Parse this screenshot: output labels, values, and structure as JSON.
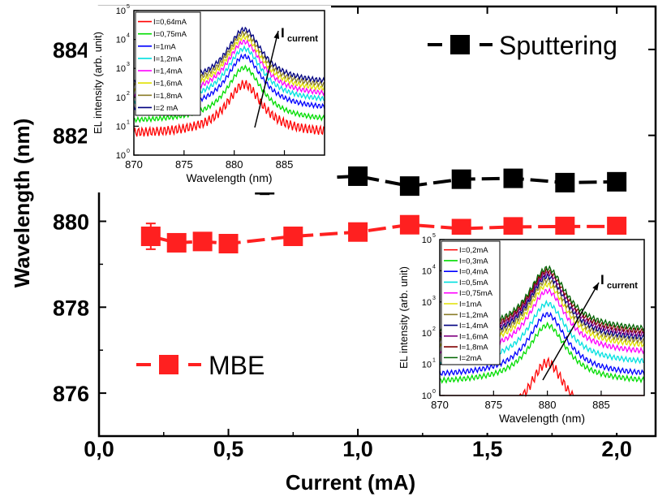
{
  "chart_data": [
    {
      "type": "scatter",
      "xlabel": "Current (mA)",
      "ylabel": "Wavelength (nm)",
      "xlim": [
        0.0,
        2.15
      ],
      "ylim": [
        875.0,
        885.0
      ],
      "xticks": [
        "0,0",
        "0,5",
        "1,0",
        "1,5",
        "2,0"
      ],
      "xtick_values": [
        0.0,
        0.5,
        1.0,
        1.5,
        2.0
      ],
      "yticks": [
        "876",
        "878",
        "880",
        "882",
        "884"
      ],
      "ytick_values": [
        876,
        878,
        880,
        882,
        884
      ],
      "legend": "series labels inside plot area",
      "series": [
        {
          "name": "Sputtering",
          "color": "#000000",
          "marker": "square",
          "x": [
            0.64,
            0.75,
            1.0,
            1.2,
            1.4,
            1.6,
            1.8,
            2.0
          ],
          "y": [
            880.85,
            880.98,
            881.05,
            880.82,
            880.98,
            881.0,
            880.9,
            880.92
          ],
          "yerr": [
            0.22,
            0.1,
            0.12,
            0.12,
            0.1,
            0.1,
            0.08,
            0.08
          ]
        },
        {
          "name": "MBE",
          "color": "#ff2020",
          "marker": "square",
          "x": [
            0.2,
            0.3,
            0.4,
            0.5,
            0.75,
            1.0,
            1.2,
            1.4,
            1.6,
            1.8,
            2.0
          ],
          "y": [
            879.65,
            879.5,
            879.53,
            879.48,
            879.65,
            879.75,
            879.92,
            879.83,
            879.87,
            879.88,
            879.88
          ],
          "yerr": [
            0.3,
            0.08,
            0.08,
            0.08,
            0.08,
            0.08,
            0.08,
            0.08,
            0.08,
            0.08,
            0.08
          ]
        }
      ]
    },
    {
      "type": "line",
      "xlabel": "Wavelength (nm)",
      "ylabel": "EL intensity (arb. unit)",
      "xlim": [
        870,
        889
      ],
      "ylim_log10": [
        0,
        5
      ],
      "log_y": true,
      "xticks": [
        "870",
        "875",
        "880",
        "885"
      ],
      "xtick_values": [
        870,
        875,
        880,
        885
      ],
      "yticks": [
        "10",
        "10",
        "10",
        "10",
        "10",
        "10"
      ],
      "ytick_exponents": [
        "0",
        "1",
        "2",
        "3",
        "4",
        "5"
      ],
      "annotation_main": "I",
      "annotation_sub": "current",
      "legend": "top-left",
      "peak_x": 881,
      "series": [
        {
          "name": "I=0,64mA",
          "color": "#ff0000",
          "peak_log10": 2.45,
          "floor_log10": 0.72
        },
        {
          "name": "I=0,75mA",
          "color": "#00dd00",
          "peak_log10": 3.02,
          "floor_log10": 1.15
        },
        {
          "name": "I=1mA",
          "color": "#0000ff",
          "peak_log10": 3.42,
          "floor_log10": 1.55
        },
        {
          "name": "I=1,2mA",
          "color": "#00e0e0",
          "peak_log10": 3.68,
          "floor_log10": 1.82
        },
        {
          "name": "I=1,4mA",
          "color": "#ff00ff",
          "peak_log10": 3.92,
          "floor_log10": 2.02
        },
        {
          "name": "I=1,6mA",
          "color": "#e0e000",
          "peak_log10": 4.08,
          "floor_log10": 2.18
        },
        {
          "name": "I=1,8mA",
          "color": "#8b7d2a",
          "peak_log10": 4.22,
          "floor_log10": 2.32
        },
        {
          "name": "I=2 mA",
          "color": "#000080",
          "peak_log10": 4.35,
          "floor_log10": 2.45
        }
      ]
    },
    {
      "type": "line",
      "xlabel": "Wavelength (nm)",
      "ylabel": "EL intensity (arb. unit)",
      "xlim": [
        870,
        889
      ],
      "ylim_log10": [
        0,
        5
      ],
      "log_y": true,
      "xticks": [
        "870",
        "875",
        "880",
        "885"
      ],
      "xtick_values": [
        870,
        875,
        880,
        885
      ],
      "yticks": [
        "10",
        "10",
        "10",
        "10",
        "10",
        "10"
      ],
      "ytick_exponents": [
        "0",
        "1",
        "2",
        "3",
        "4",
        "5"
      ],
      "annotation_main": "I",
      "annotation_sub": "current",
      "legend": "top-left",
      "peak_x": 880,
      "series": [
        {
          "name": "I=0,2mA",
          "color": "#ff0000",
          "peak_log10": 1.05,
          "floor_log10": -1.0
        },
        {
          "name": "I=0,3mA",
          "color": "#00dd00",
          "peak_log10": 2.25,
          "floor_log10": 0.4
        },
        {
          "name": "I=0,4mA",
          "color": "#0000ff",
          "peak_log10": 2.6,
          "floor_log10": 0.62
        },
        {
          "name": "I=0,5mA",
          "color": "#00e0e0",
          "peak_log10": 2.95,
          "floor_log10": 1.0
        },
        {
          "name": "I=0,75mA",
          "color": "#ff00ff",
          "peak_log10": 3.35,
          "floor_log10": 1.32
        },
        {
          "name": "I=1mA",
          "color": "#e0e000",
          "peak_log10": 3.55,
          "floor_log10": 1.52
        },
        {
          "name": "I=1,2mA",
          "color": "#8b7d2a",
          "peak_log10": 3.7,
          "floor_log10": 1.65
        },
        {
          "name": "I=1,4mA",
          "color": "#000080",
          "peak_log10": 3.82,
          "floor_log10": 1.75
        },
        {
          "name": "I=1,6mA",
          "color": "#800080",
          "peak_log10": 3.92,
          "floor_log10": 1.85
        },
        {
          "name": "I=1,8mA",
          "color": "#800000",
          "peak_log10": 4.0,
          "floor_log10": 1.95
        },
        {
          "name": "I=2mA",
          "color": "#006400",
          "peak_log10": 4.08,
          "floor_log10": 2.05
        }
      ]
    }
  ]
}
